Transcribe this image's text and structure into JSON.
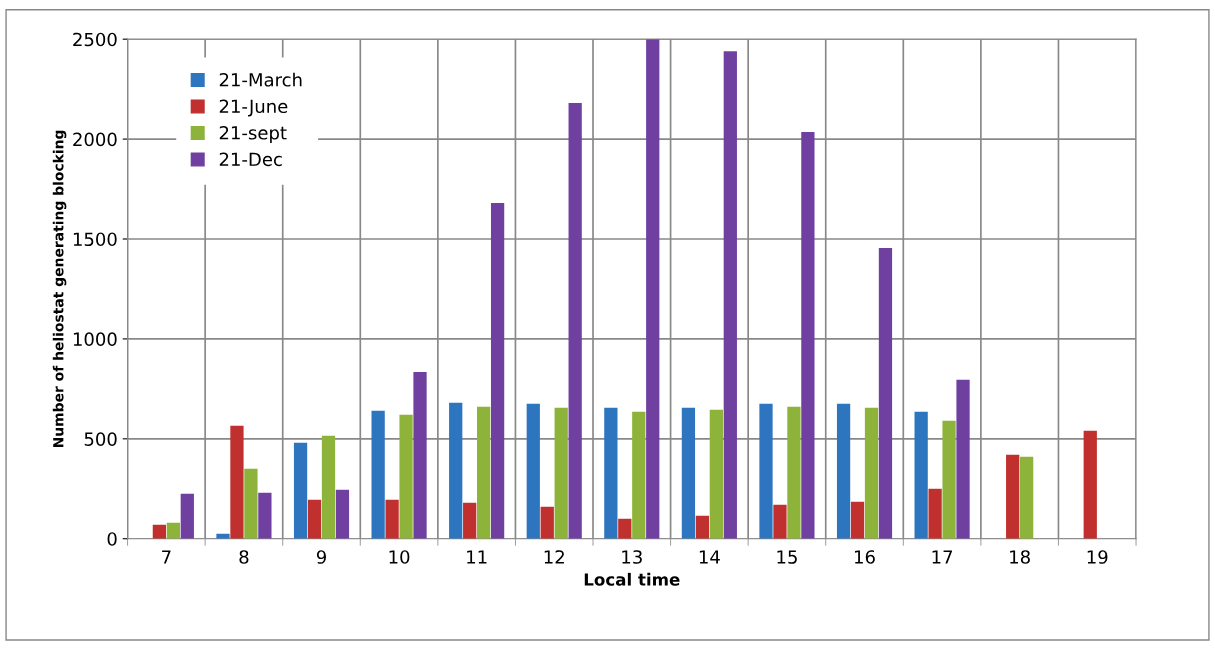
{
  "chart_data": {
    "type": "bar",
    "xlabel": "Local time",
    "ylabel": "Number of heliostat generating blocking",
    "categories": [
      "7",
      "8",
      "9",
      "10",
      "11",
      "12",
      "13",
      "14",
      "15",
      "16",
      "17",
      "18",
      "19"
    ],
    "series": [
      {
        "name": "21-March",
        "color": "#2e75c0",
        "values": [
          0,
          25,
          480,
          640,
          680,
          675,
          655,
          655,
          675,
          675,
          635,
          0,
          0
        ]
      },
      {
        "name": "21-June",
        "color": "#c0302e",
        "values": [
          70,
          565,
          195,
          195,
          180,
          160,
          100,
          115,
          170,
          185,
          250,
          420,
          540
        ]
      },
      {
        "name": "21-sept",
        "color": "#8db33a",
        "values": [
          80,
          350,
          515,
          620,
          660,
          655,
          635,
          645,
          660,
          655,
          590,
          410,
          0
        ]
      },
      {
        "name": "21-Dec",
        "color": "#7040a0",
        "values": [
          225,
          230,
          245,
          835,
          1680,
          2180,
          2500,
          2440,
          2035,
          1455,
          795,
          0,
          0
        ]
      }
    ],
    "ylim": [
      0,
      2500
    ],
    "yticks": [
      0,
      500,
      1000,
      1500,
      2000,
      2500
    ],
    "grid": true,
    "legend": "top left"
  }
}
